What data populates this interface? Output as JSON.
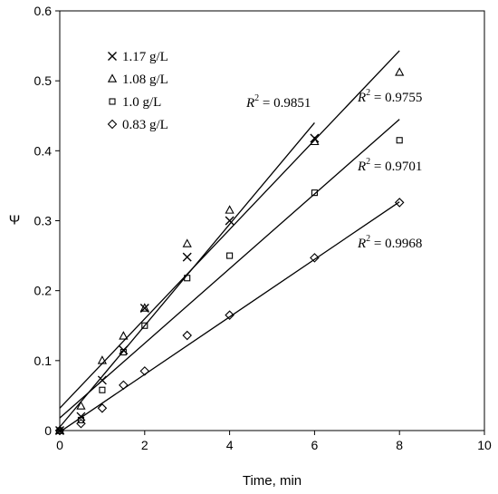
{
  "chart_data": {
    "type": "scatter",
    "xlabel": "Time, min",
    "ylabel": "Ψ",
    "xlim": [
      0,
      10
    ],
    "ylim": [
      0,
      0.6
    ],
    "xticks": [
      "0",
      "2",
      "4",
      "6",
      "8",
      "10"
    ],
    "yticks": [
      "0",
      "0.1",
      "0.2",
      "0.3",
      "0.4",
      "0.5",
      "0.6"
    ],
    "legend_position": "top-left",
    "series": [
      {
        "name": "1.17 g/L",
        "marker": "x",
        "points": [
          [
            0,
            0
          ],
          [
            0.5,
            0.02
          ],
          [
            1,
            0.072
          ],
          [
            1.5,
            0.115
          ],
          [
            2,
            0.175
          ],
          [
            3,
            0.248
          ],
          [
            4,
            0.3
          ],
          [
            6,
            0.418
          ]
        ],
        "trendline": {
          "x": [
            0,
            6
          ],
          "y": [
            0.005,
            0.44
          ]
        },
        "r2_label": {
          "prefix": "R",
          "sup": "2",
          "suffix": " = 0.9851"
        }
      },
      {
        "name": "1.08 g/L",
        "marker": "triangle",
        "points": [
          [
            0,
            0
          ],
          [
            0.5,
            0.035
          ],
          [
            1,
            0.1
          ],
          [
            1.5,
            0.135
          ],
          [
            2,
            0.175
          ],
          [
            3,
            0.267
          ],
          [
            4,
            0.315
          ],
          [
            6,
            0.413
          ],
          [
            8,
            0.512
          ]
        ],
        "trendline": {
          "x": [
            0,
            8
          ],
          "y": [
            0.032,
            0.543
          ]
        },
        "r2_label": {
          "prefix": "R",
          "sup": "2",
          "suffix": " = 0.9755"
        }
      },
      {
        "name": "1.0 g/L",
        "marker": "square",
        "points": [
          [
            0,
            0
          ],
          [
            0.5,
            0.015
          ],
          [
            1,
            0.058
          ],
          [
            1.5,
            0.112
          ],
          [
            2,
            0.15
          ],
          [
            3,
            0.218
          ],
          [
            4,
            0.25
          ],
          [
            6,
            0.34
          ],
          [
            8,
            0.415
          ]
        ],
        "trendline": {
          "x": [
            0,
            8
          ],
          "y": [
            0.018,
            0.445
          ]
        },
        "r2_label": {
          "prefix": "R",
          "sup": "2",
          "suffix": " = 0.9701"
        }
      },
      {
        "name": "0.83 g/L",
        "marker": "diamond",
        "points": [
          [
            0,
            0
          ],
          [
            0.5,
            0.01
          ],
          [
            1,
            0.032
          ],
          [
            1.5,
            0.065
          ],
          [
            2,
            0.085
          ],
          [
            3,
            0.136
          ],
          [
            4,
            0.165
          ],
          [
            6,
            0.247
          ],
          [
            8,
            0.326
          ]
        ],
        "trendline": {
          "x": [
            0,
            8
          ],
          "y": [
            -0.002,
            0.327
          ]
        },
        "r2_label": {
          "prefix": "R",
          "sup": "2",
          "suffix": " = 0.9968"
        }
      }
    ]
  }
}
